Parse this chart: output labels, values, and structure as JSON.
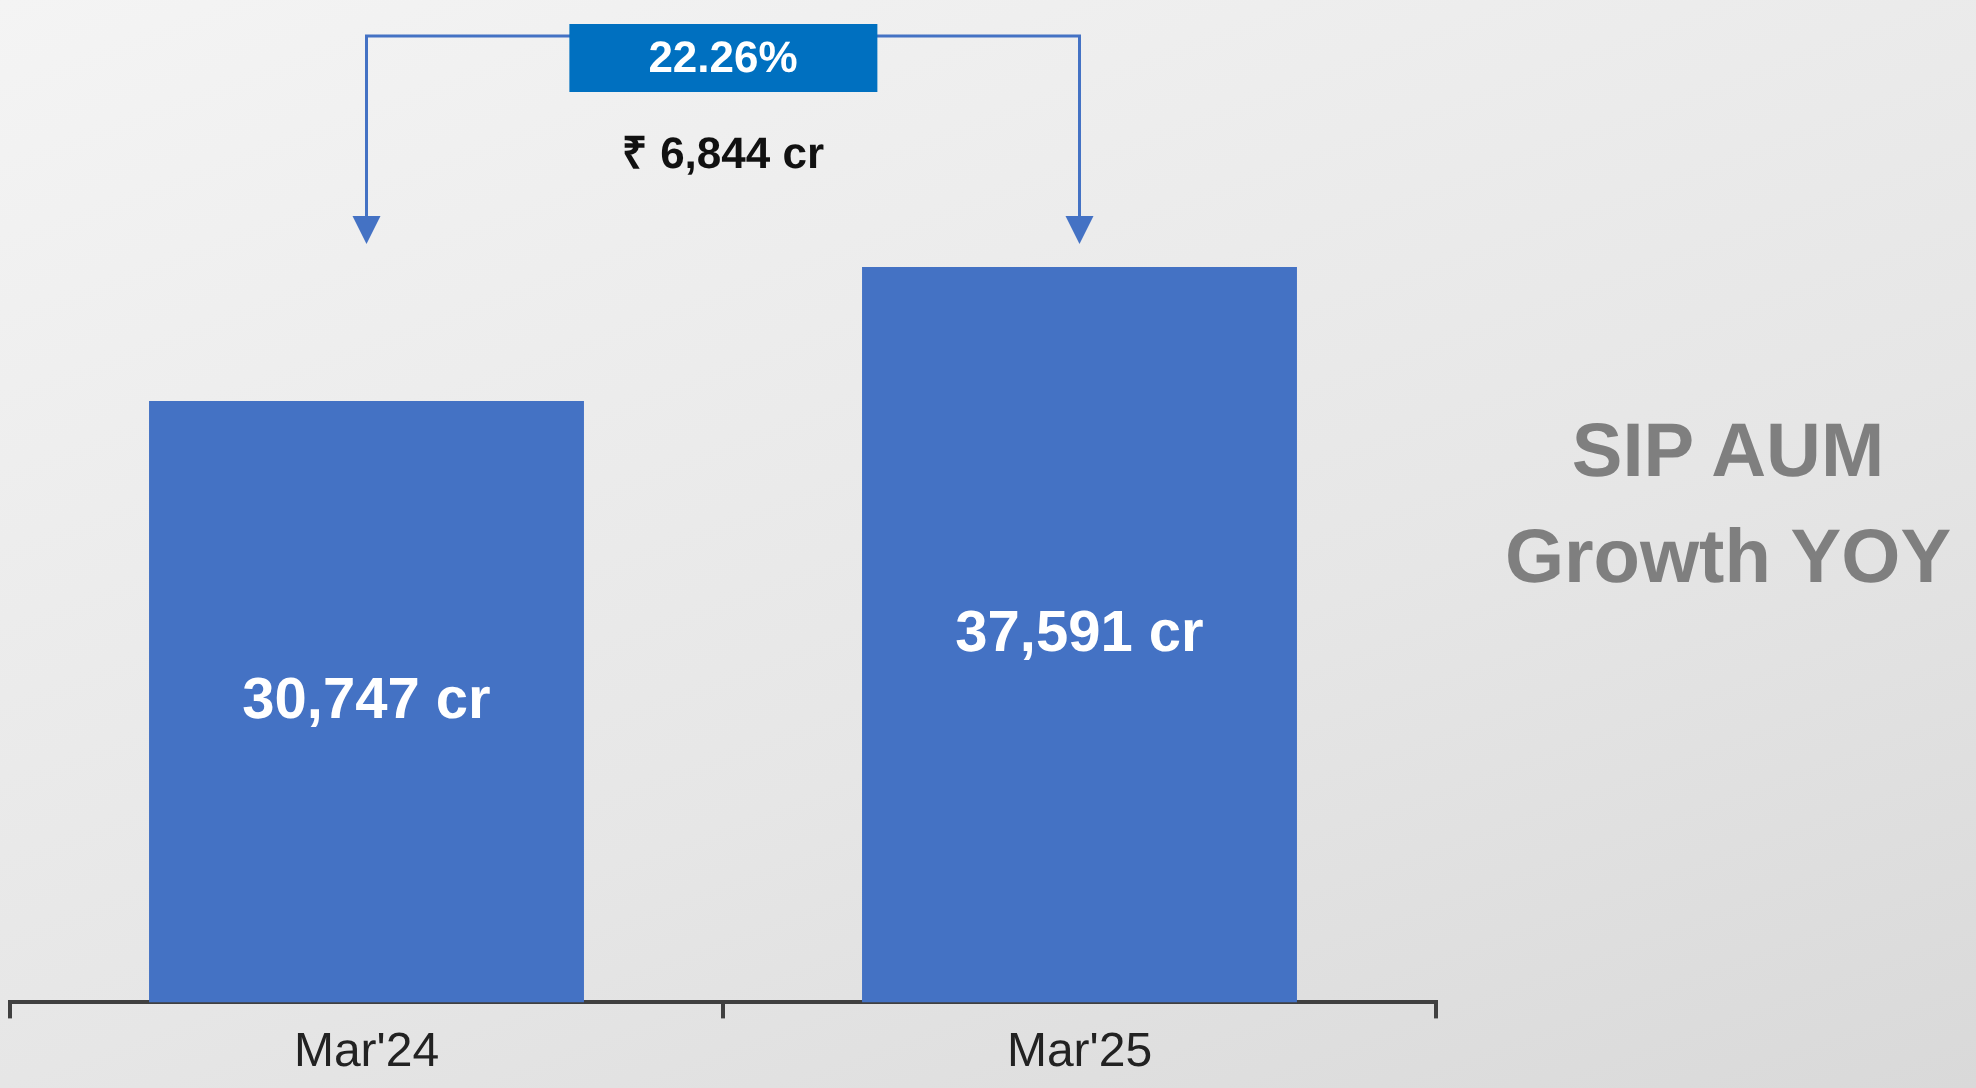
{
  "chart_data": {
    "type": "bar",
    "title": "SIP AUM Growth YOY",
    "categories": [
      "Mar'24",
      "Mar'25"
    ],
    "values": [
      30747,
      37591
    ],
    "value_labels": [
      "30,747 cr",
      "37,591 cr"
    ],
    "color": "#4472c4",
    "annotations": [
      "22.26%",
      "₹ 6,844 cr"
    ],
    "tick_labels": "x"
  }
}
